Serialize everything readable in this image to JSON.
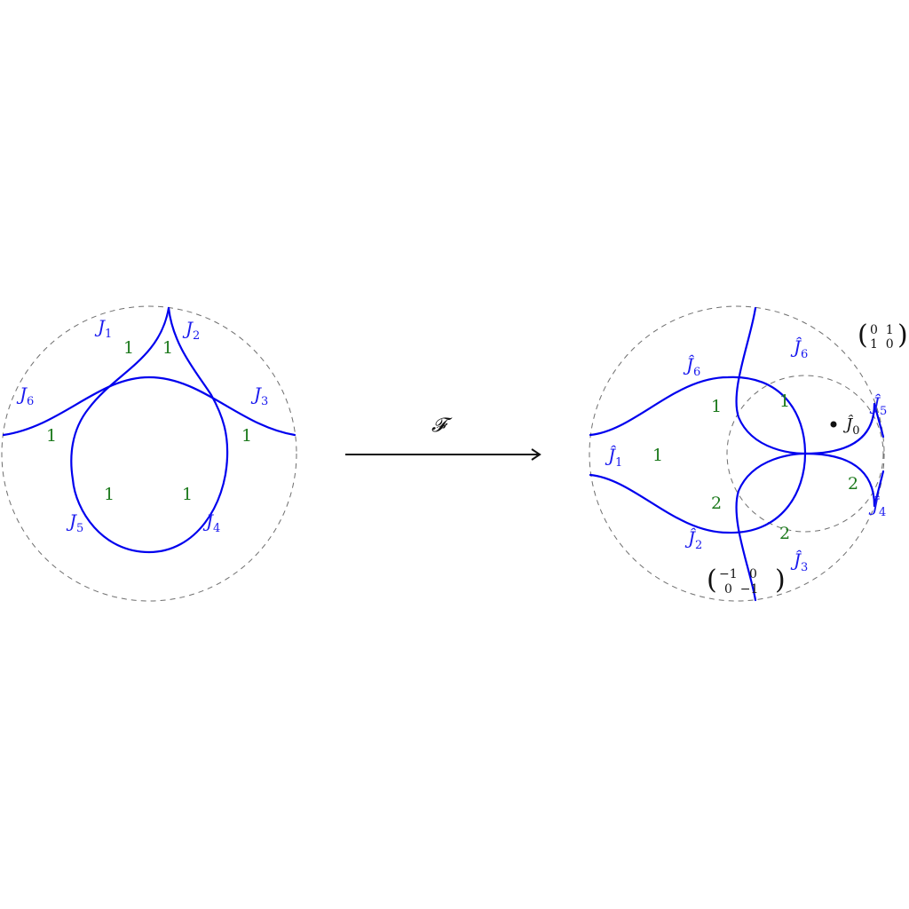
{
  "left_diagram": {
    "curve_labels": [
      {
        "base": "J",
        "sub": "1"
      },
      {
        "base": "J",
        "sub": "2"
      },
      {
        "base": "J",
        "sub": "3"
      },
      {
        "base": "J",
        "sub": "4"
      },
      {
        "base": "J",
        "sub": "5"
      },
      {
        "base": "J",
        "sub": "6"
      }
    ],
    "region_labels": [
      "1",
      "1",
      "1",
      "1",
      "1",
      "1"
    ]
  },
  "map": {
    "label": "𝓕"
  },
  "right_diagram": {
    "curve_labels": [
      {
        "base": "Ĵ",
        "sub": "1"
      },
      {
        "base": "Ĵ",
        "sub": "2"
      },
      {
        "base": "Ĵ",
        "sub": "3"
      },
      {
        "base": "Ĵ",
        "sub": "4"
      },
      {
        "base": "Ĵ",
        "sub": "5"
      },
      {
        "base": "Ĵ",
        "sub": "6"
      }
    ],
    "region_labels": [
      "1",
      "1",
      "1",
      "2",
      "2",
      "2"
    ],
    "point_label": {
      "base": "Ĵ",
      "sub": "0"
    },
    "matrix_top": {
      "r1": "0  1",
      "r2": "1  0"
    },
    "matrix_bottom": {
      "r1": "−1   0",
      "r2": "0  −1"
    }
  },
  "colors": {
    "curves": "#0000ee",
    "curve_labels": "#1a1aee",
    "multiplicities": "#1e7a1e",
    "dashed": "#6e6e6e"
  }
}
